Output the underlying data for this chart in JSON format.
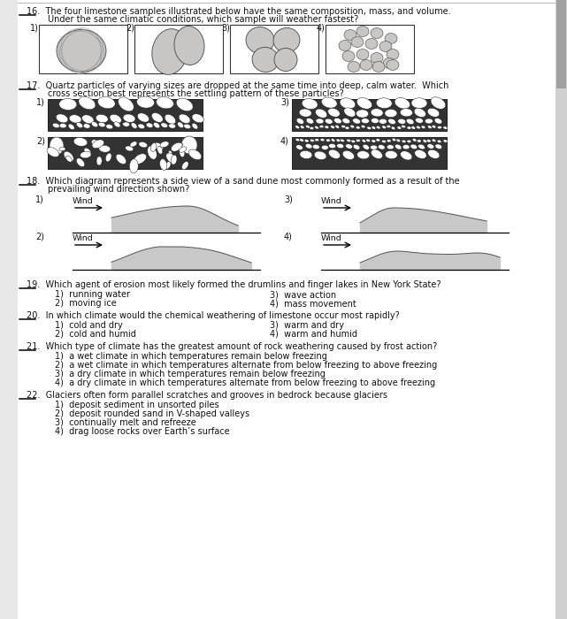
{
  "bg_color": "#ffffff",
  "page_bg": "#e8e8e8",
  "text_color": "#1a1a1a",
  "q16_text1": "16.  The four limestone samples illustrated below have the same composition, mass, and volume.",
  "q16_text2": "Under the same climatic conditions, which sample will weather fastest?",
  "q17_text1": "17.  Quartz particles of varying sizes are dropped at the same time into deep, calm water.  Which",
  "q17_text2": "cross section best represents the settling pattern of these particles?",
  "q18_text1": "18.  Which diagram represents a side view of a sand dune most commonly formed as a result of the",
  "q18_text2": "prevailing wind direction shown?",
  "q19_text": "19.  Which agent of erosion most likely formed the drumlins and finger lakes in New York State?",
  "q19_c1": "1)  running water",
  "q19_c2": "2)  moving ice",
  "q19_c3": "3)  wave action",
  "q19_c4": "4)  mass movement",
  "q20_text": "20.  In which climate would the chemical weathering of limestone occur most rapidly?",
  "q20_c1": "1)  cold and dry",
  "q20_c2": "2)  cold and humid",
  "q20_c3": "3)  warm and dry",
  "q20_c4": "4)  warm and humid",
  "q21_text": "21.  Which type of climate has the greatest amount of rock weathering caused by frost action?",
  "q21_c1": "1)  a wet climate in which temperatures remain below freezing",
  "q21_c2": "2)  a wet climate in which temperatures alternate from below freezing to above freezing",
  "q21_c3": "3)  a dry climate in which temperatures remain below freezing",
  "q21_c4": "4)  a dry climate in which temperatures alternate from below freezing to above freezing",
  "q22_text": "22.  Glaciers often form parallel scratches and grooves in bedrock because glaciers",
  "q22_c1": "1)  deposit sediment in unsorted piles",
  "q22_c2": "2)  deposit rounded sand in V-shaped valleys",
  "q22_c3": "3)  continually melt and refreeze",
  "q22_c4": "4)  drag loose rocks over Earth’s surface"
}
